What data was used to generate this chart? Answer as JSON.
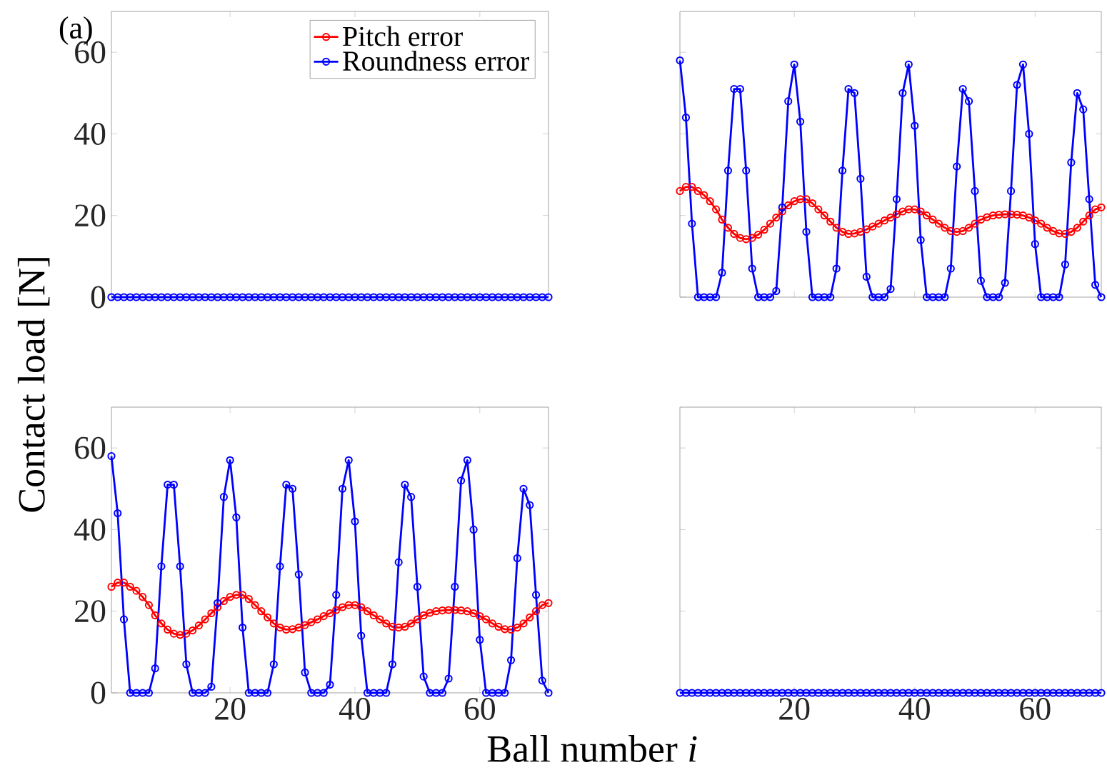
{
  "chart_data": [
    {
      "type": "line",
      "annotations": [
        "(a)"
      ],
      "x": [
        1,
        2,
        3,
        4,
        5,
        6,
        7,
        8,
        9,
        10,
        11,
        12,
        13,
        14,
        15,
        16,
        17,
        18,
        19,
        20,
        21,
        22,
        23,
        24,
        25,
        26,
        27,
        28,
        29,
        30,
        31,
        32,
        33,
        34,
        35,
        36,
        37,
        38,
        39,
        40,
        41,
        42,
        43,
        44,
        45,
        46,
        47,
        48,
        49,
        50,
        51,
        52,
        53,
        54,
        55,
        56,
        57,
        58,
        59,
        60,
        61,
        62,
        63,
        64,
        65,
        66,
        67,
        68,
        69,
        70,
        71
      ],
      "xlim": [
        1,
        71
      ],
      "xticks": [
        20,
        40,
        60
      ],
      "ylim": [
        0,
        70
      ],
      "yticks": [
        0,
        20,
        40,
        60
      ],
      "tick_labels": "y",
      "marker": "circle",
      "legend": "top right",
      "series": [
        {
          "name": "Pitch error",
          "color": "#ff0000",
          "values": [
            null,
            null,
            null,
            null,
            null,
            null,
            null,
            null,
            null,
            null,
            null,
            null,
            null,
            null,
            null,
            null,
            null,
            null,
            null,
            null,
            null,
            null,
            null,
            null,
            null,
            null,
            null,
            null,
            null,
            null,
            null,
            null,
            null,
            null,
            null,
            null,
            null,
            null,
            null,
            null,
            null,
            null,
            null,
            null,
            null,
            null,
            null,
            null,
            null,
            null,
            null,
            null,
            null,
            null,
            null,
            null,
            null,
            null,
            null,
            null,
            null,
            null,
            null,
            null,
            null,
            null,
            null,
            null,
            null,
            null,
            null
          ]
        },
        {
          "name": "Roundness error",
          "color": "#0000ff",
          "values": [
            0,
            0,
            0,
            0,
            0,
            0,
            0,
            0,
            0,
            0,
            0,
            0,
            0,
            0,
            0,
            0,
            0,
            0,
            0,
            0,
            0,
            0,
            0,
            0,
            0,
            0,
            0,
            0,
            0,
            0,
            0,
            0,
            0,
            0,
            0,
            0,
            0,
            0,
            0,
            0,
            0,
            0,
            0,
            0,
            0,
            0,
            0,
            0,
            0,
            0,
            0,
            0,
            0,
            0,
            0,
            0,
            0,
            0,
            0,
            0,
            0,
            0,
            0,
            0,
            0,
            0,
            0,
            0,
            0,
            0,
            0
          ]
        }
      ]
    },
    {
      "type": "line",
      "x": [
        1,
        2,
        3,
        4,
        5,
        6,
        7,
        8,
        9,
        10,
        11,
        12,
        13,
        14,
        15,
        16,
        17,
        18,
        19,
        20,
        21,
        22,
        23,
        24,
        25,
        26,
        27,
        28,
        29,
        30,
        31,
        32,
        33,
        34,
        35,
        36,
        37,
        38,
        39,
        40,
        41,
        42,
        43,
        44,
        45,
        46,
        47,
        48,
        49,
        50,
        51,
        52,
        53,
        54,
        55,
        56,
        57,
        58,
        59,
        60,
        61,
        62,
        63,
        64,
        65,
        66,
        67,
        68,
        69,
        70,
        71
      ],
      "xlim": [
        1,
        71
      ],
      "xticks": [
        20,
        40,
        60
      ],
      "ylim": [
        0,
        70
      ],
      "yticks": [
        0,
        20,
        40,
        60
      ],
      "tick_labels": false,
      "marker": "circle",
      "series": [
        {
          "color": "#ff0000",
          "values": [
            26,
            27,
            27,
            26,
            25,
            23.5,
            21.5,
            19,
            17,
            15.5,
            14.5,
            14.2,
            14.5,
            15.3,
            16.5,
            18,
            19.5,
            21,
            22.5,
            23.5,
            24,
            24,
            23,
            21.5,
            20,
            18.5,
            17,
            16,
            15.5,
            15.6,
            16,
            16.6,
            17.3,
            18,
            18.8,
            19.5,
            20.3,
            21,
            21.5,
            21.5,
            21,
            20,
            19,
            18,
            17,
            16.2,
            16,
            16.2,
            17,
            18,
            19,
            19.6,
            20,
            20.2,
            20.3,
            20.3,
            20.2,
            20,
            19.5,
            18.8,
            18,
            17,
            16.2,
            15.6,
            15.5,
            16,
            17,
            18.5,
            20,
            21.5,
            22
          ]
        },
        {
          "color": "#0000ff",
          "values": [
            58,
            44,
            18,
            0,
            0,
            0,
            0,
            6,
            31,
            51,
            51,
            31,
            7,
            0,
            0,
            0,
            1.5,
            22,
            48,
            57,
            43,
            16,
            0,
            0,
            0,
            0,
            7,
            31,
            51,
            50,
            29,
            5,
            0,
            0,
            0,
            2,
            24,
            50,
            57,
            42,
            14,
            0,
            0,
            0,
            0,
            7,
            32,
            51,
            48,
            26,
            4,
            0,
            0,
            0,
            3.5,
            26,
            52,
            57,
            40,
            13,
            0,
            0,
            0,
            0,
            8,
            33,
            50,
            46,
            24,
            3,
            0
          ]
        }
      ]
    },
    {
      "type": "line",
      "xlabel": "Ball number *i*",
      "ylabel": "Contact load [N]",
      "x": [
        1,
        2,
        3,
        4,
        5,
        6,
        7,
        8,
        9,
        10,
        11,
        12,
        13,
        14,
        15,
        16,
        17,
        18,
        19,
        20,
        21,
        22,
        23,
        24,
        25,
        26,
        27,
        28,
        29,
        30,
        31,
        32,
        33,
        34,
        35,
        36,
        37,
        38,
        39,
        40,
        41,
        42,
        43,
        44,
        45,
        46,
        47,
        48,
        49,
        50,
        51,
        52,
        53,
        54,
        55,
        56,
        57,
        58,
        59,
        60,
        61,
        62,
        63,
        64,
        65,
        66,
        67,
        68,
        69,
        70,
        71
      ],
      "xlim": [
        1,
        71
      ],
      "xticks": [
        20,
        40,
        60
      ],
      "ylim": [
        0,
        70
      ],
      "yticks": [
        0,
        20,
        40,
        60
      ],
      "marker": "circle",
      "series": [
        {
          "color": "#ff0000",
          "values": [
            26,
            27,
            27,
            26,
            25,
            23.5,
            21.5,
            19,
            17,
            15.5,
            14.5,
            14.2,
            14.5,
            15.3,
            16.5,
            18,
            19.5,
            21,
            22.5,
            23.5,
            24,
            24,
            23,
            21.5,
            20,
            18.5,
            17,
            16,
            15.5,
            15.6,
            16,
            16.6,
            17.3,
            18,
            18.8,
            19.5,
            20.3,
            21,
            21.5,
            21.5,
            21,
            20,
            19,
            18,
            17,
            16.2,
            16,
            16.2,
            17,
            18,
            19,
            19.6,
            20,
            20.2,
            20.3,
            20.3,
            20.2,
            20,
            19.5,
            18.8,
            18,
            17,
            16.2,
            15.6,
            15.5,
            16,
            17,
            18.5,
            20,
            21.5,
            22
          ]
        },
        {
          "color": "#0000ff",
          "values": [
            58,
            44,
            18,
            0,
            0,
            0,
            0,
            6,
            31,
            51,
            51,
            31,
            7,
            0,
            0,
            0,
            1.5,
            22,
            48,
            57,
            43,
            16,
            0,
            0,
            0,
            0,
            7,
            31,
            51,
            50,
            29,
            5,
            0,
            0,
            0,
            2,
            24,
            50,
            57,
            42,
            14,
            0,
            0,
            0,
            0,
            7,
            32,
            51,
            48,
            26,
            4,
            0,
            0,
            0,
            3.5,
            26,
            52,
            57,
            40,
            13,
            0,
            0,
            0,
            0,
            8,
            33,
            50,
            46,
            24,
            3,
            0
          ]
        }
      ]
    },
    {
      "type": "line",
      "x": [
        1,
        2,
        3,
        4,
        5,
        6,
        7,
        8,
        9,
        10,
        11,
        12,
        13,
        14,
        15,
        16,
        17,
        18,
        19,
        20,
        21,
        22,
        23,
        24,
        25,
        26,
        27,
        28,
        29,
        30,
        31,
        32,
        33,
        34,
        35,
        36,
        37,
        38,
        39,
        40,
        41,
        42,
        43,
        44,
        45,
        46,
        47,
        48,
        49,
        50,
        51,
        52,
        53,
        54,
        55,
        56,
        57,
        58,
        59,
        60,
        61,
        62,
        63,
        64,
        65,
        66,
        67,
        68,
        69,
        70,
        71
      ],
      "xlim": [
        1,
        71
      ],
      "xticks": [
        20,
        40,
        60
      ],
      "ylim": [
        0,
        70
      ],
      "yticks": [
        0,
        20,
        40,
        60
      ],
      "tick_labels": "x",
      "marker": "circle",
      "series": [
        {
          "color": "#0000ff",
          "values": [
            0,
            0,
            0,
            0,
            0,
            0,
            0,
            0,
            0,
            0,
            0,
            0,
            0,
            0,
            0,
            0,
            0,
            0,
            0,
            0,
            0,
            0,
            0,
            0,
            0,
            0,
            0,
            0,
            0,
            0,
            0,
            0,
            0,
            0,
            0,
            0,
            0,
            0,
            0,
            0,
            0,
            0,
            0,
            0,
            0,
            0,
            0,
            0,
            0,
            0,
            0,
            0,
            0,
            0,
            0,
            0,
            0,
            0,
            0,
            0,
            0,
            0,
            0,
            0,
            0,
            0,
            0,
            0,
            0,
            0,
            0
          ]
        }
      ]
    }
  ]
}
